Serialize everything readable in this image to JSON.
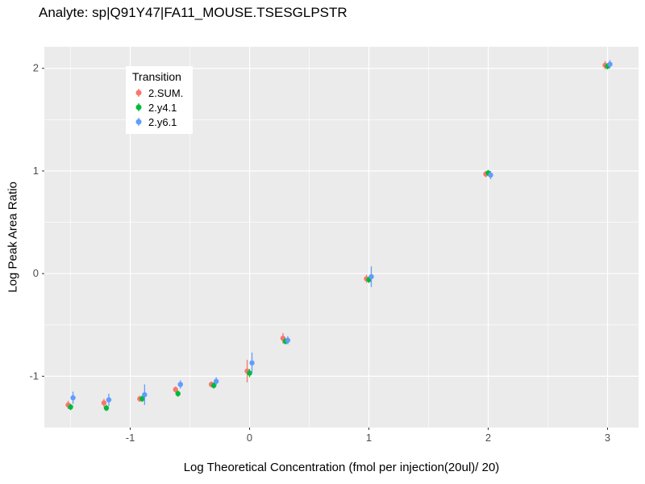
{
  "chart_data": {
    "type": "scatter",
    "title": "Analyte: sp|Q91Y47|FA11_MOUSE.TSESGLPSTR",
    "xlabel": "Log Theoretical Concentration (fmol per injection(20ul)/ 20)",
    "ylabel": "Log Peak Area Ratio",
    "xlim": [
      -1.72,
      3.26
    ],
    "ylim": [
      -1.5,
      2.21
    ],
    "xticks": [
      -1,
      0,
      1,
      2,
      3
    ],
    "yticks": [
      -1,
      0,
      1,
      2
    ],
    "x_minor": [
      -1.5,
      -0.5,
      0.5,
      1.5,
      2.5
    ],
    "y_minor": [
      -0.5,
      0.5,
      1.5
    ],
    "grid": true,
    "legend_title": "Transition",
    "legend_position": "inside-top-left",
    "panel_color": "#EBEBEB",
    "gridline_color": "#FFFFFF",
    "tick_label_color": "#4D4D4D",
    "series": [
      {
        "name": "2.SUM.",
        "color": "#F8766D",
        "points": [
          [
            -1.5,
            -1.28,
            0.04
          ],
          [
            -1.2,
            -1.26,
            0.04
          ],
          [
            -0.9,
            -1.22,
            0.03
          ],
          [
            -0.6,
            -1.13,
            0.03
          ],
          [
            -0.3,
            -1.08,
            0.03
          ],
          [
            0,
            -0.95,
            0.11
          ],
          [
            0.3,
            -0.63,
            0.05
          ],
          [
            1,
            -0.05,
            0.04
          ],
          [
            2,
            0.97,
            0.03
          ],
          [
            3,
            2.03,
            0.04
          ]
        ]
      },
      {
        "name": "2.y4.1",
        "color": "#00BA38",
        "points": [
          [
            -1.5,
            -1.3,
            0.03
          ],
          [
            -1.2,
            -1.31,
            0.03
          ],
          [
            -0.9,
            -1.22,
            0.03
          ],
          [
            -0.6,
            -1.17,
            0.03
          ],
          [
            -0.3,
            -1.09,
            0.03
          ],
          [
            0,
            -0.97,
            0.04
          ],
          [
            0.3,
            -0.66,
            0.03
          ],
          [
            1,
            -0.06,
            0.03
          ],
          [
            2,
            0.98,
            0.03
          ],
          [
            3,
            2.02,
            0.03
          ]
        ]
      },
      {
        "name": "2.y6.1",
        "color": "#619CFF",
        "points": [
          [
            -1.5,
            -1.21,
            0.06
          ],
          [
            -1.2,
            -1.23,
            0.06
          ],
          [
            -0.9,
            -1.18,
            0.1
          ],
          [
            -0.6,
            -1.08,
            0.04
          ],
          [
            -0.3,
            -1.05,
            0.04
          ],
          [
            0,
            -0.87,
            0.1
          ],
          [
            0.3,
            -0.65,
            0.04
          ],
          [
            1,
            -0.03,
            0.1
          ],
          [
            2,
            0.96,
            0.04
          ],
          [
            3,
            2.04,
            0.04
          ]
        ]
      }
    ]
  }
}
